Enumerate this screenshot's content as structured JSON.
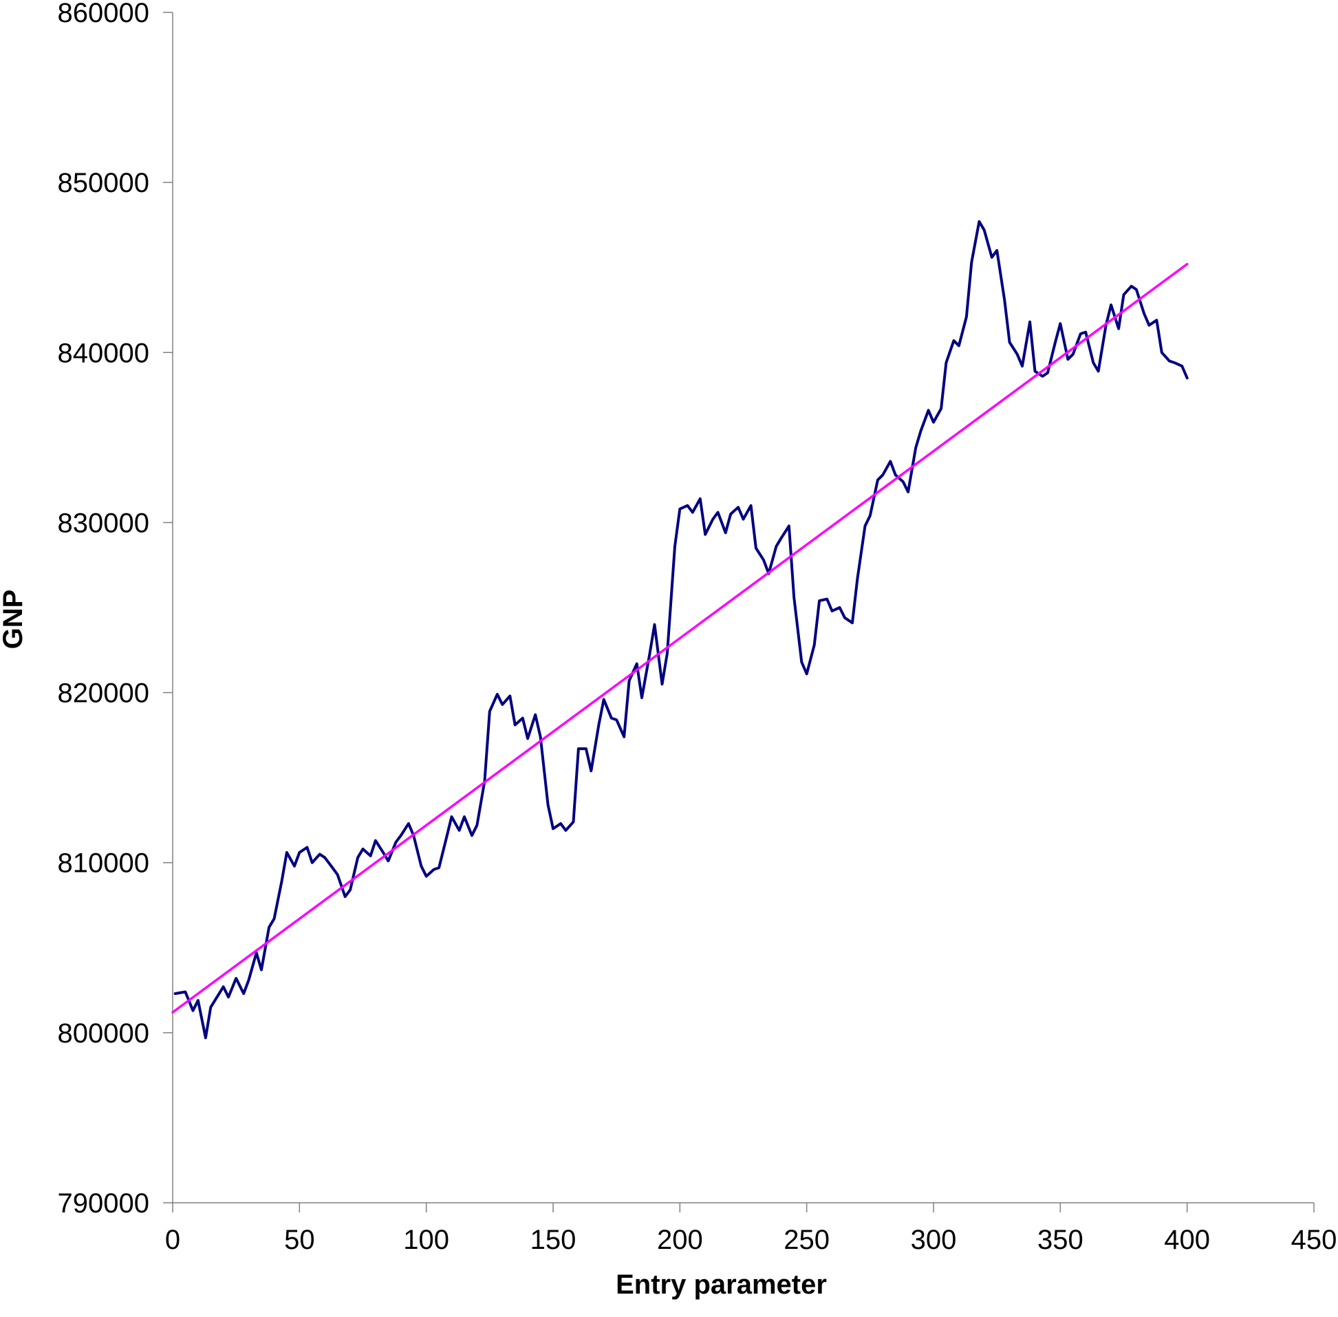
{
  "chart_data": {
    "type": "line",
    "title": "",
    "xlabel": "Entry parameter",
    "ylabel": "GNP",
    "xlim": [
      0,
      450
    ],
    "ylim": [
      790000,
      860000
    ],
    "x_ticks": [
      "0",
      "50",
      "100",
      "150",
      "200",
      "250",
      "300",
      "350",
      "400",
      "450"
    ],
    "y_ticks": [
      "790000",
      "800000",
      "810000",
      "820000",
      "830000",
      "840000",
      "850000",
      "860000"
    ],
    "grid": false,
    "legend": "none",
    "series": [
      {
        "color": "#000080",
        "x": [
          1,
          5,
          8,
          10,
          13,
          15,
          20,
          22,
          25,
          28,
          30,
          33,
          35,
          38,
          40,
          43,
          45,
          48,
          50,
          53,
          55,
          58,
          60,
          63,
          65,
          68,
          70,
          73,
          75,
          78,
          80,
          83,
          85,
          88,
          90,
          93,
          95,
          98,
          100,
          103,
          105,
          108,
          110,
          113,
          115,
          118,
          120,
          123,
          125,
          128,
          130,
          133,
          135,
          138,
          140,
          143,
          145,
          148,
          150,
          153,
          155,
          158,
          160,
          163,
          165,
          168,
          170,
          173,
          175,
          178,
          180,
          183,
          185,
          188,
          190,
          193,
          195,
          198,
          200,
          203,
          205,
          208,
          210,
          213,
          215,
          218,
          220,
          223,
          225,
          228,
          230,
          233,
          235,
          238,
          240,
          243,
          245,
          248,
          250,
          253,
          255,
          258,
          260,
          263,
          265,
          268,
          270,
          273,
          275,
          278,
          280,
          283,
          285,
          288,
          290,
          293,
          295,
          298,
          300,
          303,
          305,
          308,
          310,
          313,
          315,
          318,
          320,
          323,
          325,
          328,
          330,
          333,
          335,
          338,
          340,
          343,
          345,
          348,
          350,
          353,
          355,
          358,
          360,
          363,
          365,
          368,
          370,
          373,
          375,
          378,
          380,
          383,
          385,
          388,
          390,
          393,
          395,
          398,
          400
        ],
        "y": [
          802300,
          802400,
          801300,
          801900,
          799700,
          801500,
          802700,
          802100,
          803200,
          802300,
          803100,
          804700,
          803700,
          806200,
          806700,
          808900,
          810600,
          809800,
          810600,
          810900,
          810000,
          810500,
          810300,
          809700,
          809300,
          808000,
          808400,
          810300,
          810800,
          810400,
          811300,
          810600,
          810100,
          811200,
          811600,
          812300,
          811600,
          809800,
          809200,
          809600,
          809700,
          811500,
          812700,
          811900,
          812700,
          811600,
          812200,
          814800,
          818900,
          819900,
          819300,
          819800,
          818100,
          818500,
          817300,
          818700,
          817400,
          813400,
          812000,
          812300,
          811900,
          812400,
          816700,
          816700,
          815400,
          818100,
          819600,
          818500,
          818400,
          817400,
          820700,
          821700,
          819700,
          822200,
          824000,
          820500,
          822300,
          828600,
          830800,
          831000,
          830600,
          831400,
          829300,
          830200,
          830600,
          829400,
          830500,
          830900,
          830200,
          831000,
          828500,
          827800,
          827000,
          828600,
          829100,
          829800,
          825600,
          821800,
          821100,
          822800,
          825400,
          825500,
          824800,
          825000,
          824400,
          824100,
          826700,
          829800,
          830400,
          832500,
          832800,
          833600,
          832800,
          832400,
          831800,
          834400,
          835400,
          836600,
          835900,
          836700,
          839400,
          840700,
          840400,
          842100,
          845300,
          847700,
          847200,
          845600,
          846000,
          843100,
          840600,
          839900,
          839200,
          841800,
          838900,
          838600,
          838800,
          840600,
          841700,
          839600,
          839900,
          841100,
          841200,
          839400,
          838900,
          841600,
          842800,
          841400,
          843400,
          843900,
          843700,
          842300,
          841600,
          841900,
          840000,
          839500,
          839400,
          839200,
          838500
        ]
      },
      {
        "color": "#ff00ff",
        "x": [
          0,
          400
        ],
        "y": [
          801200,
          845200
        ]
      }
    ]
  }
}
